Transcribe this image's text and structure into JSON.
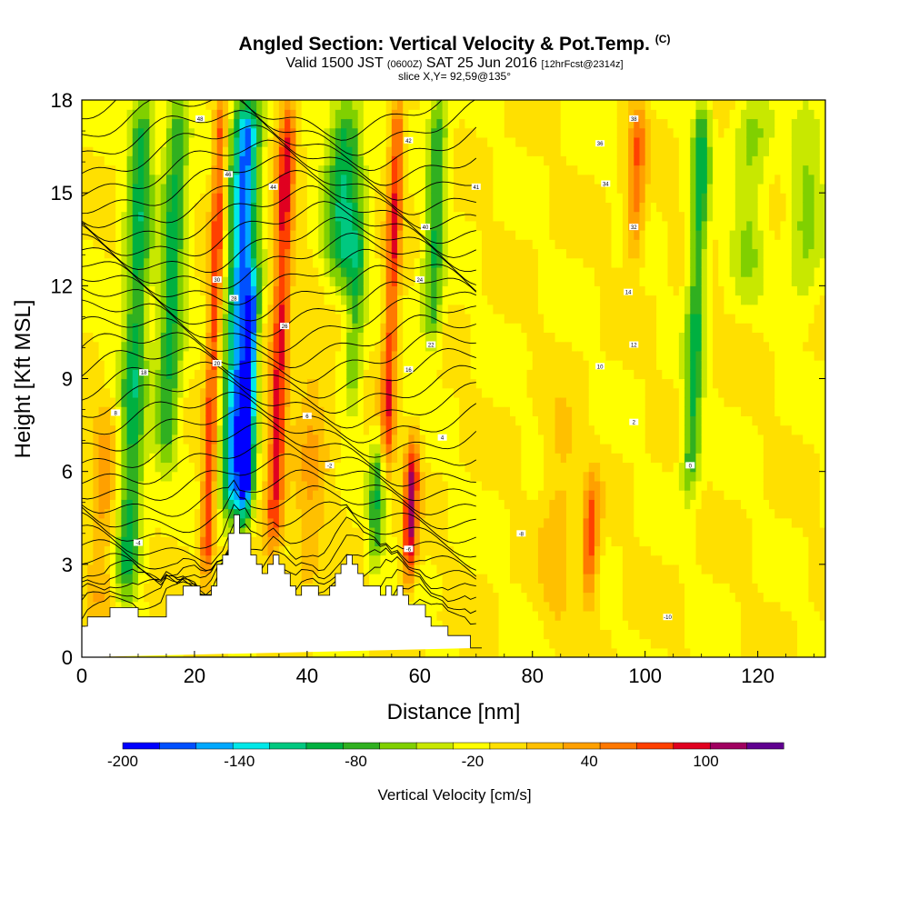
{
  "header": {
    "title": "Angled Section: Vertical Velocity & Pot.Temp.",
    "title_suffix": "(C)",
    "subtitle_a": "Valid 1500 JST",
    "subtitle_b": "(0600Z)",
    "subtitle_c": "SAT 25 Jun 2016",
    "subtitle_d": "[12hrFcst@2314z]",
    "slice": "slice X,Y= 92,59@135°"
  },
  "chart_data": {
    "type": "heatmap",
    "xlabel": "Distance [nm]",
    "ylabel": "Height [Kft MSL]",
    "xlim": [
      0,
      132
    ],
    "ylim": [
      0,
      18
    ],
    "x_ticks": [
      0,
      20,
      40,
      60,
      80,
      100,
      120
    ],
    "y_ticks": [
      0,
      3,
      6,
      9,
      12,
      15,
      18
    ],
    "grid": false,
    "colorbar": {
      "label": "Vertical Velocity [cm/s]",
      "min": -200,
      "max": 140,
      "step": 20,
      "tick_values": [
        -200,
        -140,
        -80,
        -20,
        40,
        100
      ],
      "colors": [
        "#0000ff",
        "#0050ff",
        "#00a8ff",
        "#00e8e8",
        "#00c880",
        "#00b040",
        "#30b020",
        "#80d000",
        "#c8e800",
        "#ffff00",
        "#ffe000",
        "#ffc000",
        "#ffa000",
        "#ff7800",
        "#ff4000",
        "#e00020",
        "#a00060",
        "#600090"
      ]
    },
    "background_velocity": 0,
    "velocity_bands": [
      {
        "x": 8,
        "width": 2.2,
        "h1": 2,
        "h2": 18,
        "value": -90
      },
      {
        "x": 15,
        "width": 2.2,
        "h1": 6.5,
        "h2": 18,
        "value": -85
      },
      {
        "x": 22,
        "width": 1.2,
        "h1": 2.5,
        "h2": 18,
        "value": 95
      },
      {
        "x": 27,
        "width": 2.4,
        "h1": 4.5,
        "h2": 18,
        "value": -165
      },
      {
        "x": 29,
        "width": 1.2,
        "h1": 4.5,
        "h2": 12,
        "value": -130
      },
      {
        "x": 34,
        "width": 1.6,
        "h1": 3.5,
        "h2": 18,
        "value": 105
      },
      {
        "x": 46,
        "width": 3.2,
        "h1": 12,
        "h2": 18,
        "value": -95
      },
      {
        "x": 48,
        "width": 1.6,
        "h1": 8,
        "h2": 14,
        "value": -60
      },
      {
        "x": 52,
        "width": 1.4,
        "h1": 3,
        "h2": 7,
        "value": -75
      },
      {
        "x": 54,
        "width": 1.3,
        "h1": 6,
        "h2": 18,
        "value": 95
      },
      {
        "x": 58,
        "width": 1.3,
        "h1": 2.5,
        "h2": 7,
        "value": 120
      },
      {
        "x": 62,
        "width": 1.8,
        "h1": 10,
        "h2": 18,
        "value": -75
      },
      {
        "x": 90,
        "width": 1.4,
        "h1": 2,
        "h2": 5.5,
        "value": 95
      },
      {
        "x": 98,
        "width": 1.6,
        "h1": 13,
        "h2": 18,
        "value": 70
      },
      {
        "x": 108,
        "width": 1.6,
        "h1": 5.5,
        "h2": 18,
        "value": -85
      },
      {
        "x": 118,
        "width": 3,
        "h1": 12,
        "h2": 18,
        "value": -45
      },
      {
        "x": 128,
        "width": 3,
        "h1": 11,
        "h2": 18,
        "value": -40
      },
      {
        "x": 3,
        "width": 2.5,
        "h1": 1,
        "h2": 8,
        "value": 45
      },
      {
        "x": 40,
        "width": 3,
        "h1": 2,
        "h2": 10,
        "value": 35
      },
      {
        "x": 84,
        "width": 3,
        "h1": 1,
        "h2": 8,
        "value": 30
      }
    ],
    "terrain": {
      "x": [
        0,
        1,
        1,
        5,
        5,
        10,
        10,
        15,
        15,
        18,
        18,
        21,
        21,
        23,
        23,
        24,
        24,
        25,
        25,
        26,
        26,
        27,
        27,
        28,
        28,
        30,
        30,
        31,
        31,
        32,
        32,
        33,
        33,
        34,
        34,
        35,
        35,
        36,
        36,
        37,
        37,
        38,
        38,
        39,
        39,
        42,
        42,
        44,
        44,
        45,
        45,
        46,
        46,
        47,
        47,
        48,
        48,
        49,
        49,
        50,
        50,
        53,
        53,
        54,
        54,
        55,
        55,
        56,
        56,
        57,
        57,
        58,
        58,
        61,
        61,
        62,
        62,
        65,
        65,
        69,
        69,
        71,
        71,
        132
      ],
      "h": [
        1,
        1,
        1.3,
        1.3,
        1.6,
        1.6,
        1.3,
        1.3,
        2,
        2,
        2.3,
        2.3,
        2,
        2,
        2.3,
        2.3,
        3,
        3,
        3.3,
        3.3,
        4,
        4,
        4.6,
        4.6,
        4,
        4,
        3.3,
        3.3,
        3,
        3,
        2.7,
        2.7,
        3,
        3,
        3.3,
        3.3,
        3,
        3,
        2.7,
        2.7,
        2.3,
        2.3,
        2,
        2,
        2.3,
        2.3,
        2,
        2,
        2.3,
        2.3,
        2.7,
        2.7,
        3,
        3,
        3.3,
        3.3,
        3,
        3,
        2.7,
        2.7,
        2.3,
        2.3,
        2,
        2,
        2.3,
        2.3,
        2,
        2,
        2.3,
        2.3,
        2,
        2,
        1.7,
        1.7,
        1.3,
        1.3,
        1,
        1,
        0.7,
        0.7,
        0.3,
        0.3
      ]
    },
    "isotherm_count": 36,
    "isotherm_labels": [
      {
        "text": "48",
        "x": 21,
        "y": 17.4
      },
      {
        "text": "46",
        "x": 26,
        "y": 15.6
      },
      {
        "text": "44",
        "x": 34,
        "y": 15.2
      },
      {
        "text": "42",
        "x": 58,
        "y": 16.7
      },
      {
        "text": "41",
        "x": 70,
        "y": 15.2
      },
      {
        "text": "40",
        "x": 61,
        "y": 13.9
      },
      {
        "text": "38",
        "x": 98,
        "y": 17.4
      },
      {
        "text": "36",
        "x": 92,
        "y": 16.6
      },
      {
        "text": "34",
        "x": 93,
        "y": 15.3
      },
      {
        "text": "32",
        "x": 98,
        "y": 13.9
      },
      {
        "text": "30",
        "x": 24,
        "y": 12.2
      },
      {
        "text": "28",
        "x": 27,
        "y": 11.6
      },
      {
        "text": "26",
        "x": 36,
        "y": 10.7
      },
      {
        "text": "24",
        "x": 60,
        "y": 12.2
      },
      {
        "text": "22",
        "x": 62,
        "y": 10.1
      },
      {
        "text": "20",
        "x": 24,
        "y": 9.5
      },
      {
        "text": "18",
        "x": 11,
        "y": 9.2
      },
      {
        "text": "16",
        "x": 58,
        "y": 9.3
      },
      {
        "text": "14",
        "x": 97,
        "y": 11.8
      },
      {
        "text": "12",
        "x": 98,
        "y": 10.1
      },
      {
        "text": "10",
        "x": 92,
        "y": 9.4
      },
      {
        "text": "8",
        "x": 6,
        "y": 7.9
      },
      {
        "text": "6",
        "x": 40,
        "y": 7.8
      },
      {
        "text": "4",
        "x": 64,
        "y": 7.1
      },
      {
        "text": "2",
        "x": 98,
        "y": 7.6
      },
      {
        "text": "0",
        "x": 108,
        "y": 6.2
      },
      {
        "text": "-2",
        "x": 44,
        "y": 6.2
      },
      {
        "text": "-4",
        "x": 10,
        "y": 3.7
      },
      {
        "text": "-6",
        "x": 58,
        "y": 3.5
      },
      {
        "text": "-8",
        "x": 78,
        "y": 4
      },
      {
        "text": "-10",
        "x": 104,
        "y": 1.3
      }
    ]
  }
}
